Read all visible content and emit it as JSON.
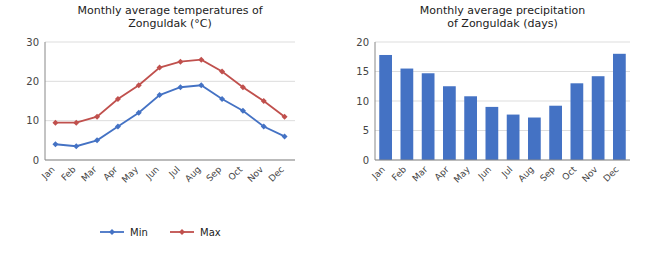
{
  "chart_data": [
    {
      "type": "line",
      "title": "Monthly average temperatures of\nZonguldak  (°C)",
      "categories": [
        "Jan",
        "Feb",
        "Mar",
        "Apr",
        "May",
        "Jun",
        "Jul",
        "Aug",
        "Sep",
        "Oct",
        "Nov",
        "Dec"
      ],
      "series": [
        {
          "name": "Min",
          "color": "#4472C4",
          "marker": "diamond",
          "values": [
            4,
            3.5,
            5,
            8.5,
            12,
            16.5,
            18.5,
            19,
            15.5,
            12.5,
            8.5,
            6
          ]
        },
        {
          "name": "Max",
          "color": "#C0504D",
          "marker": "diamond",
          "values": [
            9.5,
            9.5,
            11,
            15.5,
            19,
            23.5,
            25,
            25.5,
            22.5,
            18.5,
            15,
            11
          ]
        }
      ],
      "ylim": [
        0,
        30
      ],
      "yticks": [
        0,
        10,
        20,
        30
      ],
      "grid": true,
      "legend": "bottom"
    },
    {
      "type": "bar",
      "title": "Monthly average precipitation\nof Zonguldak (days)",
      "categories": [
        "Jan",
        "Feb",
        "Mar",
        "Apr",
        "May",
        "Jun",
        "Jul",
        "Aug",
        "Sep",
        "Oct",
        "Nov",
        "Dec"
      ],
      "values": [
        17.8,
        15.5,
        14.7,
        12.5,
        10.8,
        9.0,
        7.7,
        7.2,
        9.2,
        13.0,
        14.2,
        18.0
      ],
      "color": "#4472C4",
      "ylim": [
        0,
        20
      ],
      "yticks": [
        0,
        5,
        10,
        15,
        20
      ],
      "grid": true
    }
  ]
}
